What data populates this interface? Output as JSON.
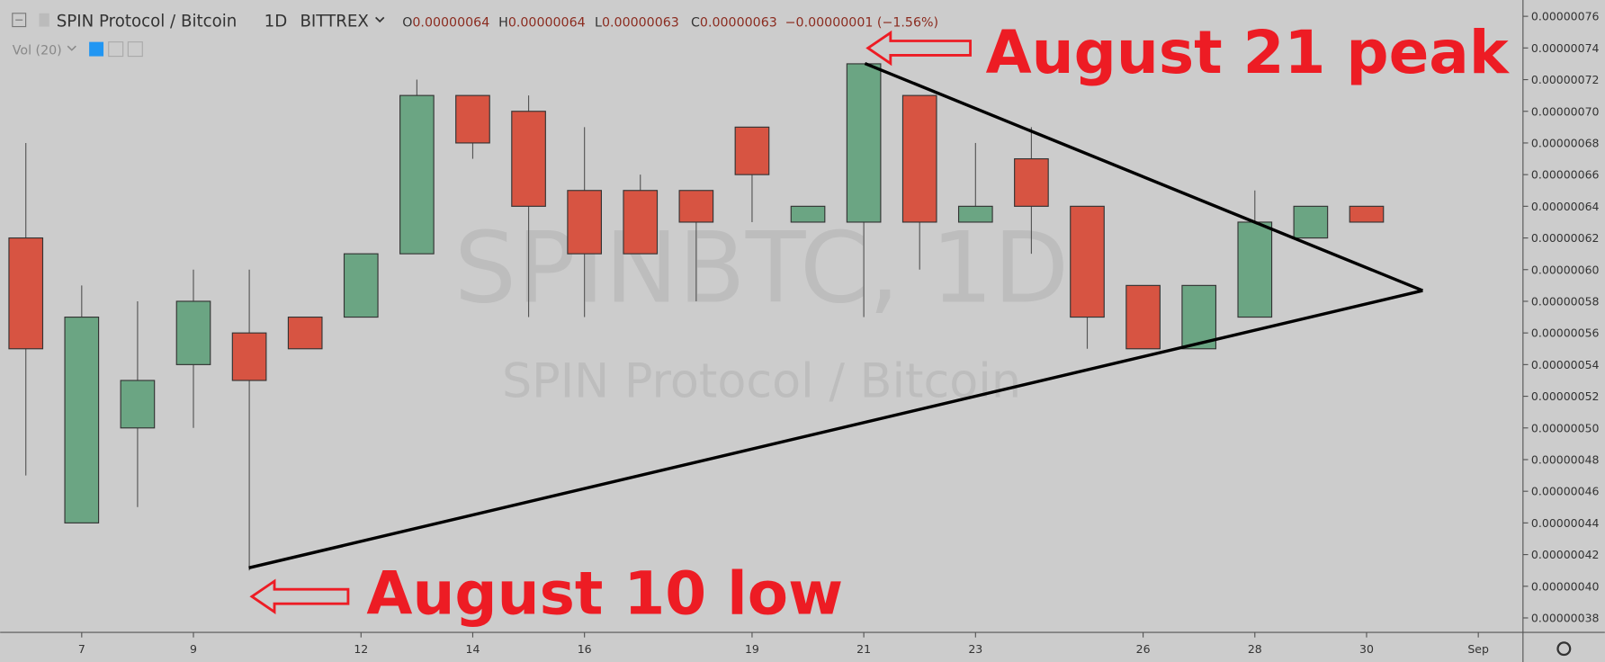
{
  "header": {
    "symbol": "SPIN Protocol / Bitcoin",
    "interval": "1D",
    "exchange": "BITTREX",
    "ohlc": [
      {
        "label": "O",
        "value": "0.00000064"
      },
      {
        "label": "H",
        "value": "0.00000064"
      },
      {
        "label": "L",
        "value": "0.00000063"
      },
      {
        "label": "C",
        "value": "0.00000063"
      }
    ],
    "change": "−0.00000001 (−1.56%)",
    "volume": "Vol (20)"
  },
  "watermark": {
    "ticker": "SPINBTC, 1D",
    "name": "SPIN Protocol / Bitcoin"
  },
  "annotations": {
    "peak": "August 21 peak",
    "low": "August 10 low"
  },
  "chart_data": {
    "type": "candlestick",
    "x": [
      6,
      7,
      8,
      9,
      10,
      11,
      12,
      13,
      14,
      15,
      16,
      17,
      18,
      19,
      20,
      21,
      22,
      23,
      24,
      25,
      26,
      27,
      28,
      29,
      30
    ],
    "open": [
      6.2e-07,
      4.4e-07,
      5e-07,
      5.4e-07,
      5.6e-07,
      5.7e-07,
      5.7e-07,
      6.1e-07,
      7.1e-07,
      7e-07,
      6.5e-07,
      6.5e-07,
      6.5e-07,
      6.9e-07,
      6.3e-07,
      6.3e-07,
      7.1e-07,
      6.3e-07,
      6.7e-07,
      6.4e-07,
      5.9e-07,
      5.5e-07,
      5.7e-07,
      6.2e-07,
      6.4e-07
    ],
    "high": [
      6.8e-07,
      5.9e-07,
      5.8e-07,
      6e-07,
      6e-07,
      5.7e-07,
      6.1e-07,
      7.2e-07,
      7.1e-07,
      7.1e-07,
      6.9e-07,
      6.6e-07,
      6.5e-07,
      6.9e-07,
      6.4e-07,
      7.3e-07,
      7.1e-07,
      6.8e-07,
      6.9e-07,
      6.4e-07,
      5.9e-07,
      5.9e-07,
      6.5e-07,
      6.4e-07,
      6.4e-07
    ],
    "low": [
      4.7e-07,
      4.4e-07,
      4.5e-07,
      5e-07,
      4.1e-07,
      5.5e-07,
      5.7e-07,
      6.1e-07,
      6.7e-07,
      5.7e-07,
      5.7e-07,
      6.1e-07,
      5.8e-07,
      6.3e-07,
      6.3e-07,
      5.7e-07,
      6e-07,
      6.3e-07,
      6.1e-07,
      5.5e-07,
      5.5e-07,
      5.5e-07,
      5.7e-07,
      6.2e-07,
      6.3e-07
    ],
    "close": [
      5.5e-07,
      5.7e-07,
      5.3e-07,
      5.8e-07,
      5.3e-07,
      5.5e-07,
      6.1e-07,
      7.1e-07,
      6.8e-07,
      6.4e-07,
      6.1e-07,
      6.1e-07,
      6.3e-07,
      6.6e-07,
      6.4e-07,
      7.3e-07,
      6.3e-07,
      6.4e-07,
      6.4e-07,
      5.7e-07,
      5.5e-07,
      5.9e-07,
      6.3e-07,
      6.4e-07,
      6.3e-07
    ],
    "up_color": "#6ba583",
    "down_color": "#d75442",
    "xlim": [
      5.54,
      32.8
    ],
    "xticks": [
      7,
      9,
      12,
      14,
      16,
      19,
      21,
      23,
      26,
      28,
      30,
      {
        "value": 32,
        "label": "Sep"
      }
    ],
    "ylim": [
      3.709e-07,
      7.703e-07
    ],
    "yticks": [
      {
        "value": 3.8e-07,
        "label": "0.00000038"
      },
      {
        "value": 4e-07,
        "label": "0.00000040"
      },
      {
        "value": 4.2e-07,
        "label": "0.00000042"
      },
      {
        "value": 4.4e-07,
        "label": "0.00000044"
      },
      {
        "value": 4.6e-07,
        "label": "0.00000046"
      },
      {
        "value": 4.8e-07,
        "label": "0.00000048"
      },
      {
        "value": 5e-07,
        "label": "0.00000050"
      },
      {
        "value": 5.2e-07,
        "label": "0.00000052"
      },
      {
        "value": 5.4e-07,
        "label": "0.00000054"
      },
      {
        "value": 5.6e-07,
        "label": "0.00000056"
      },
      {
        "value": 5.8e-07,
        "label": "0.00000058"
      },
      {
        "value": 6e-07,
        "label": "0.00000060"
      },
      {
        "value": 6.2e-07,
        "label": "0.00000062"
      },
      {
        "value": 6.4e-07,
        "label": "0.00000064"
      },
      {
        "value": 6.6e-07,
        "label": "0.00000066"
      },
      {
        "value": 6.8e-07,
        "label": "0.00000068"
      },
      {
        "value": 7e-07,
        "label": "0.00000070"
      },
      {
        "value": 7.2e-07,
        "label": "0.00000072"
      },
      {
        "value": 7.4e-07,
        "label": "0.00000074"
      },
      {
        "value": 7.6e-07,
        "label": "0.00000076"
      }
    ]
  }
}
